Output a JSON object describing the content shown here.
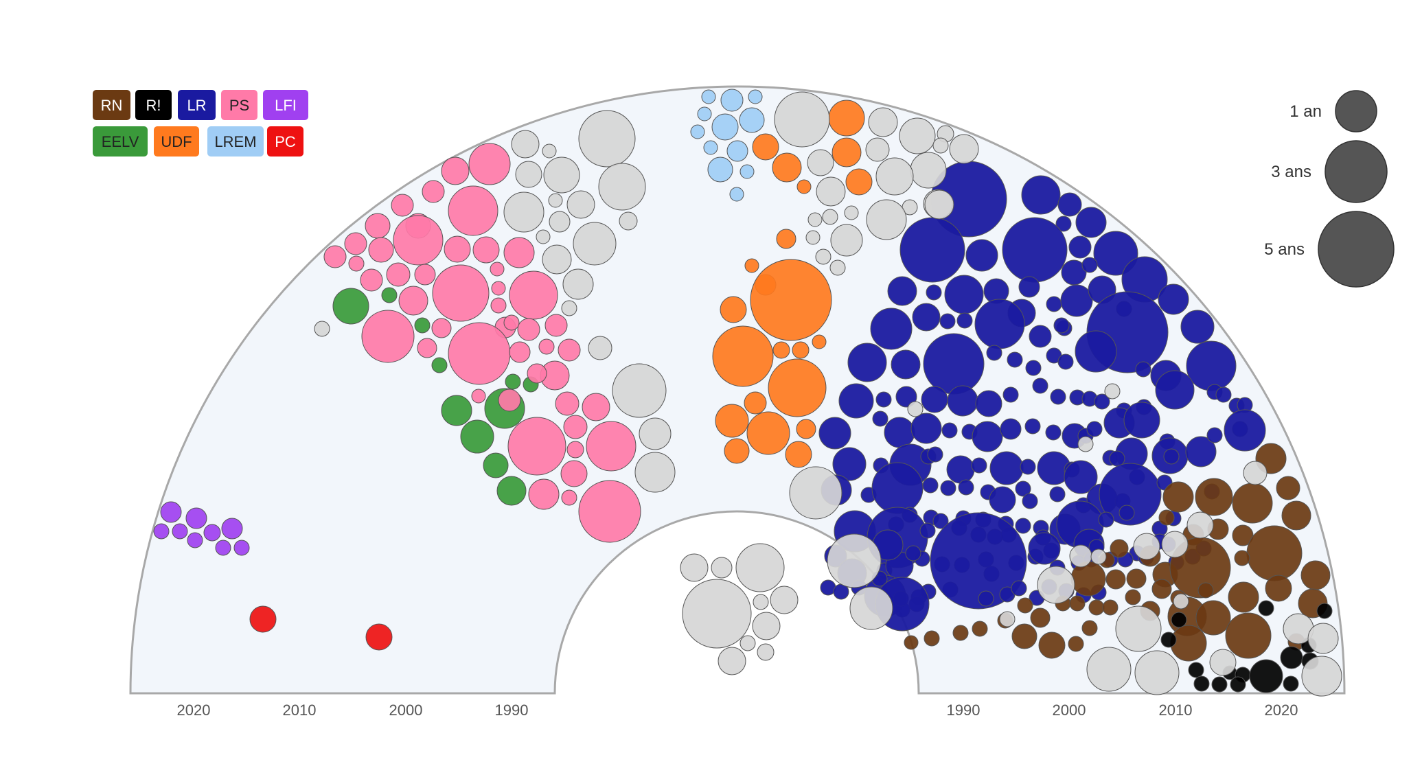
{
  "chart_data": {
    "type": "bubble-hemicycle",
    "parties": [
      {
        "label": "RN",
        "color": "#6b3a12",
        "text_color": "#ffffff"
      },
      {
        "label": "R!",
        "color": "#000000",
        "text_color": "#ffffff"
      },
      {
        "label": "LR",
        "color": "#1a1aa0",
        "text_color": "#ffffff"
      },
      {
        "label": "PS",
        "color": "#ff7aa8",
        "text_color": "#222222"
      },
      {
        "label": "LFI",
        "color": "#a040f0",
        "text_color": "#ffffff"
      },
      {
        "label": "EELV",
        "color": "#3a9a3a",
        "text_color": "#222222"
      },
      {
        "label": "UDF",
        "color": "#ff7a1e",
        "text_color": "#222222"
      },
      {
        "label": "LREM",
        "color": "#a0cdf5",
        "text_color": "#222222"
      },
      {
        "label": "PC",
        "color": "#ee1111",
        "text_color": "#ffffff"
      }
    ],
    "other_color": "#d6d6d6",
    "size_legend": [
      {
        "label": "1 an",
        "years": 1
      },
      {
        "label": "3 ans",
        "years": 3
      },
      {
        "label": "5 ans",
        "years": 5
      }
    ],
    "axis_left": {
      "ticks": [
        "2020",
        "2010",
        "2000",
        "1990"
      ]
    },
    "axis_right": {
      "ticks": [
        "1990",
        "2000",
        "2010",
        "2020"
      ]
    }
  }
}
